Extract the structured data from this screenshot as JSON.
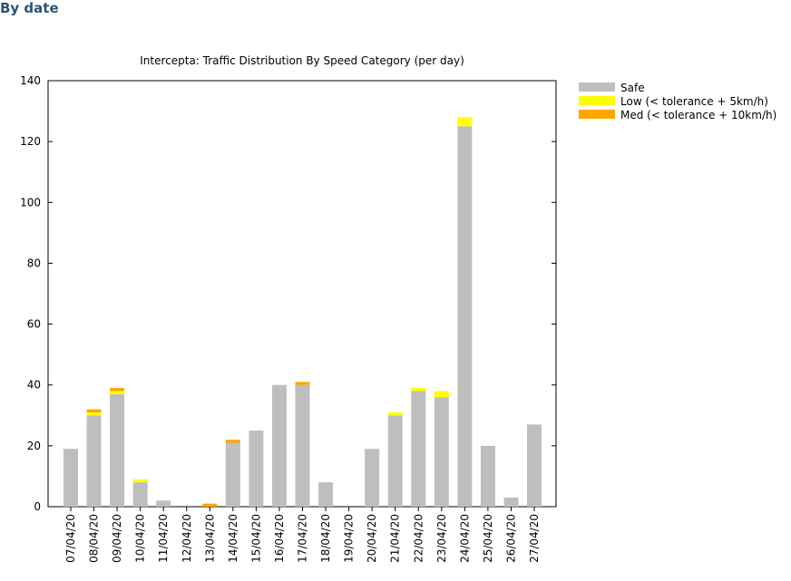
{
  "section_title": "By date",
  "chart_data": {
    "type": "bar",
    "stacked": true,
    "title": "Intercepta: Traffic Distribution By Speed Category (per day)",
    "xlabel": "",
    "ylabel": "",
    "ylim": [
      0,
      140
    ],
    "yticks": [
      0,
      20,
      40,
      60,
      80,
      100,
      120,
      140
    ],
    "legend_position": "top-right-outside",
    "categories": [
      "07/04/20",
      "08/04/20",
      "09/04/20",
      "10/04/20",
      "11/04/20",
      "12/04/20",
      "13/04/20",
      "14/04/20",
      "15/04/20",
      "16/04/20",
      "17/04/20",
      "18/04/20",
      "19/04/20",
      "20/04/20",
      "21/04/20",
      "22/04/20",
      "23/04/20",
      "24/04/20",
      "25/04/20",
      "26/04/20",
      "27/04/20"
    ],
    "series": [
      {
        "name": "Safe",
        "color": "#bebebe",
        "values": [
          19,
          30,
          37,
          8,
          2,
          0,
          0,
          21,
          25,
          40,
          40,
          8,
          0,
          19,
          30,
          38,
          36,
          125,
          20,
          3,
          27
        ]
      },
      {
        "name": "Low (< tolerance + 5km/h)",
        "color": "#ffff00",
        "values": [
          0,
          1,
          1,
          1,
          0,
          0,
          0,
          0,
          0,
          0,
          0,
          0,
          0,
          0,
          1,
          1,
          2,
          3,
          0,
          0,
          0
        ]
      },
      {
        "name": "Med (< tolerance + 10km/h)",
        "color": "#ffa500",
        "values": [
          0,
          1,
          1,
          0,
          0,
          0,
          1,
          1,
          0,
          0,
          1,
          0,
          0,
          0,
          0,
          0,
          0,
          0,
          0,
          0,
          0
        ]
      }
    ]
  }
}
